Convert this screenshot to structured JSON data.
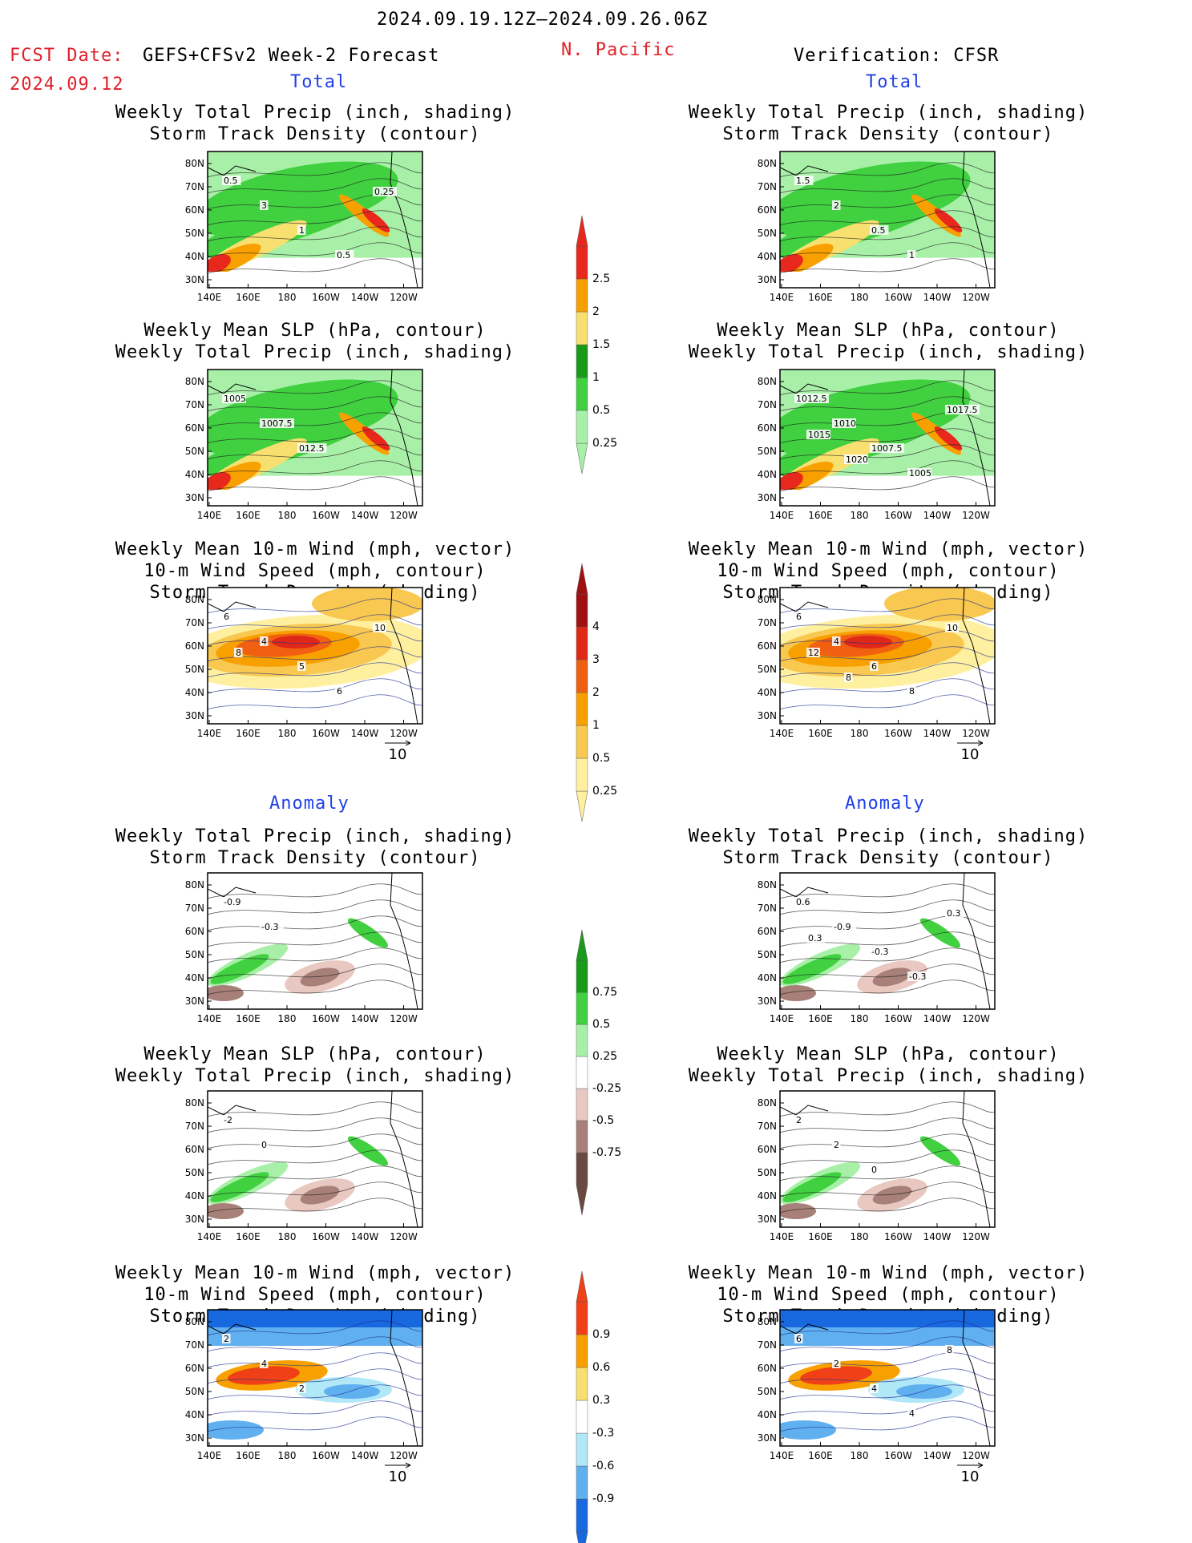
{
  "header": {
    "period": "2024.09.19.12Z–2024.09.26.06Z",
    "fcst_line1": "FCST Date:",
    "fcst_model": "GEFS+CFSv2 Week-2 Forecast",
    "fcst_date": "2024.09.12",
    "region": "N. Pacific",
    "verification": "Verification: CFSR"
  },
  "sections": {
    "total_left": "Total",
    "total_right": "Total",
    "anom_left": "Anomaly",
    "anom_right": "Anomaly"
  },
  "titles": {
    "precip_storm": [
      "Weekly Total Precip (inch, shading)",
      "Storm Track Density (contour)"
    ],
    "slp_precip": [
      "Weekly Mean SLP (hPa, contour)",
      "Weekly Total Precip (inch, shading)"
    ],
    "wind_storm": [
      "Weekly Mean 10-m Wind (mph, vector)",
      "10-m Wind Speed (mph, contour)",
      "Storm Track Density (shading)"
    ]
  },
  "axes": {
    "lat_labels": [
      "80N",
      "70N",
      "60N",
      "50N",
      "40N",
      "30N"
    ],
    "lon_labels": [
      "140E",
      "160E",
      "180",
      "160W",
      "140W",
      "120W"
    ]
  },
  "vector_ref": "10",
  "colorbars": {
    "precip_total": {
      "labels": [
        "2.5",
        "2",
        "1.5",
        "1",
        "0.5",
        "0.25"
      ],
      "colors": [
        "#e8281c",
        "#f8a000",
        "#f8e070",
        "#1a9a1a",
        "#40d040",
        "#a8f0a8"
      ]
    },
    "storm_total": {
      "labels": [
        "4",
        "3",
        "2",
        "1",
        "0.5",
        "0.25"
      ],
      "colors": [
        "#a01010",
        "#e02818",
        "#f06010",
        "#f8a000",
        "#f8c850",
        "#fff0a0"
      ]
    },
    "precip_anom": {
      "labels": [
        "0.75",
        "0.5",
        "0.25",
        "-0.25",
        "-0.5",
        "-0.75"
      ],
      "colors": [
        "#1a9a1a",
        "#40d040",
        "#a8f0a8",
        "#ffffff",
        "#e8c8c0",
        "#a8807a",
        "#6a4a40"
      ]
    },
    "storm_anom": {
      "labels": [
        "0.9",
        "0.6",
        "0.3",
        "-0.3",
        "-0.6",
        "-0.9"
      ],
      "colors": [
        "#f04018",
        "#f8a000",
        "#f8e070",
        "#ffffff",
        "#b0e8f8",
        "#60b0f0",
        "#1868e0"
      ]
    }
  },
  "panels": {
    "p1": {
      "labels": [
        "0.5",
        "3",
        "1",
        "0.5",
        "0.25"
      ]
    },
    "p2": {
      "labels": [
        "1.5",
        "2",
        "0.5",
        "1"
      ]
    },
    "p3": {
      "labels": [
        "1005",
        "1007.5",
        "012.5"
      ]
    },
    "p4": {
      "labels": [
        "1012.5",
        "1010",
        "1007.5",
        "1005",
        "1017.5",
        "1015",
        "1020"
      ]
    },
    "p5": {
      "labels": [
        "6",
        "4",
        "5",
        "6",
        "10",
        "8"
      ]
    },
    "p6": {
      "labels": [
        "6",
        "4",
        "6",
        "8",
        "10",
        "12",
        "8"
      ]
    },
    "p7": {
      "labels": [
        "-0.9",
        "-0.3"
      ]
    },
    "p8": {
      "labels": [
        "0.6",
        "-0.9",
        "-0.3",
        "-0.3",
        "0.3",
        "0.3"
      ]
    },
    "p9": {
      "labels": [
        "-2",
        "0"
      ]
    },
    "p10": {
      "labels": [
        "2",
        "2",
        "0"
      ]
    },
    "p11": {
      "labels": [
        "2",
        "4",
        "2"
      ]
    },
    "p12": {
      "labels": [
        "6",
        "2",
        "4",
        "4",
        "8"
      ]
    }
  }
}
